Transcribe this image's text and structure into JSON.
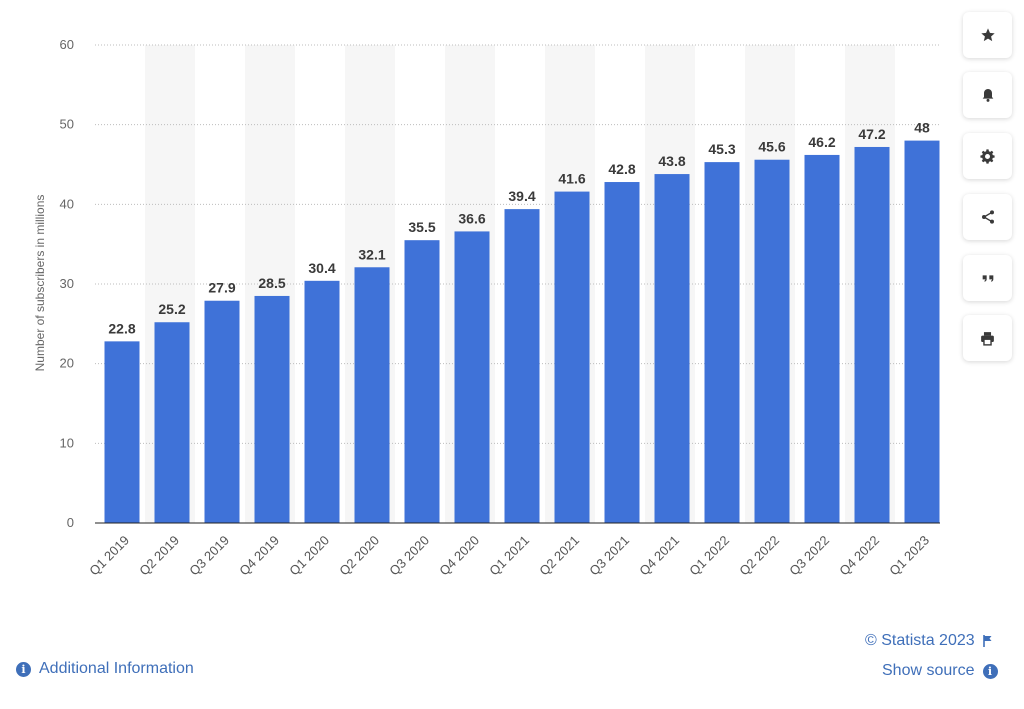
{
  "chart_data": {
    "type": "bar",
    "categories": [
      "Q1 2019",
      "Q2 2019",
      "Q3 2019",
      "Q4 2019",
      "Q1 2020",
      "Q2 2020",
      "Q3 2020",
      "Q4 2020",
      "Q1 2021",
      "Q2 2021",
      "Q3 2021",
      "Q4 2021",
      "Q1 2022",
      "Q2 2022",
      "Q3 2022",
      "Q4 2022",
      "Q1 2023"
    ],
    "values": [
      22.8,
      25.2,
      27.9,
      28.5,
      30.4,
      32.1,
      35.5,
      36.6,
      39.4,
      41.6,
      42.8,
      43.8,
      45.3,
      45.6,
      46.2,
      47.2,
      48
    ],
    "value_labels": [
      "22.8",
      "25.2",
      "27.9",
      "28.5",
      "30.4",
      "32.1",
      "35.5",
      "36.6",
      "39.4",
      "41.6",
      "42.8",
      "43.8",
      "45.3",
      "45.6",
      "46.2",
      "47.2",
      "48"
    ],
    "title": "",
    "xlabel": "",
    "ylabel": "Number of subscribers in millions",
    "ylim": [
      0,
      60
    ],
    "yticks": [
      0,
      10,
      20,
      30,
      40,
      50,
      60
    ],
    "ytick_labels": [
      "0",
      "10",
      "20",
      "30",
      "40",
      "50",
      "60"
    ],
    "grid": true,
    "legend": "none",
    "bar_color": "#3f72d8",
    "band_color": "#f6f6f6"
  },
  "toolbar": {
    "items": [
      {
        "name": "star-icon"
      },
      {
        "name": "bell-icon"
      },
      {
        "name": "gear-icon"
      },
      {
        "name": "share-icon"
      },
      {
        "name": "quote-icon"
      },
      {
        "name": "print-icon"
      }
    ]
  },
  "footer": {
    "copyright": "© Statista 2023",
    "additional_info": "Additional Information",
    "show_source": "Show source"
  }
}
